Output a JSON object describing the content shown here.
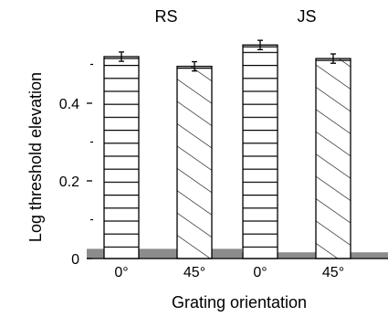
{
  "chart_data": {
    "type": "bar",
    "ylabel": "Log threshold elevation",
    "xlabel": "Grating orientation",
    "ylim": [
      0,
      0.55
    ],
    "yticks_major": [
      0,
      0.2,
      0.4
    ],
    "ytick_labels": [
      "0",
      "0.2",
      "0.4"
    ],
    "yticks_minor": [
      0.1,
      0.3,
      0.5
    ],
    "categories": [
      "0°",
      "45°"
    ],
    "panels": [
      {
        "name": "RS",
        "values": [
          0.52,
          0.495
        ],
        "errors": [
          0.012,
          0.012
        ],
        "baseline": 0.025,
        "patterns": [
          "horizontal",
          "diagonal"
        ]
      },
      {
        "name": "JS",
        "values": [
          0.55,
          0.515
        ],
        "errors": [
          0.012,
          0.012
        ],
        "baseline": 0.016,
        "patterns": [
          "horizontal",
          "diagonal"
        ]
      }
    ],
    "colors": {
      "bar_fill": "#ffffff",
      "stroke": "#000000",
      "baseline_band": "#8c8c8c"
    }
  }
}
